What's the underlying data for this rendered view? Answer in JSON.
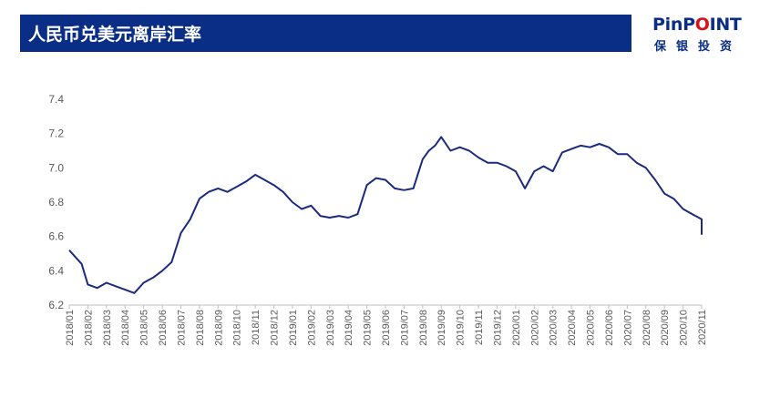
{
  "header": {
    "title": "人民币兑美元离岸汇率"
  },
  "logo": {
    "brand_pin": "PinP",
    "brand_o": "O",
    "brand_int": "INT",
    "subtitle": "保银投资"
  },
  "colors": {
    "title_bg": "#0a2e86",
    "line": "#1b2a7e",
    "logo_accent": "#d8121a"
  },
  "chart_data": {
    "type": "line",
    "title": "人民币兑美元离岸汇率",
    "xlabel": "",
    "ylabel": "",
    "ylim": [
      6.2,
      7.4
    ],
    "yticks": [
      "6.2",
      "6.4",
      "6.6",
      "6.8",
      "7.0",
      "7.2",
      "7.4"
    ],
    "grid": false,
    "legend": "none",
    "categories": [
      "2018/01",
      "2018/02",
      "2018/03",
      "2018/04",
      "2018/05",
      "2018/06",
      "2018/07",
      "2018/08",
      "2018/09",
      "2018/10",
      "2018/11",
      "2018/12",
      "2019/01",
      "2019/02",
      "2019/03",
      "2019/04",
      "2019/05",
      "2019/06",
      "2019/07",
      "2019/08",
      "2019/09",
      "2019/10",
      "2019/11",
      "2019/12",
      "2020/01",
      "2020/02",
      "2020/03",
      "2020/04",
      "2020/05",
      "2020/06",
      "2020/07",
      "2020/08",
      "2020/09",
      "2020/10",
      "2020/11"
    ],
    "series": [
      {
        "x": [
          "2018/01",
          "2018/01",
          "2018/01",
          "2018/02",
          "2018/02",
          "2018/03",
          "2018/03",
          "2018/04",
          "2018/04",
          "2018/05",
          "2018/05",
          "2018/06",
          "2018/06",
          "2018/07",
          "2018/07",
          "2018/08",
          "2018/08",
          "2018/09",
          "2018/09",
          "2018/10",
          "2018/10",
          "2018/11",
          "2018/11",
          "2018/12",
          "2018/12",
          "2019/01",
          "2019/01",
          "2019/02",
          "2019/02",
          "2019/03",
          "2019/03",
          "2019/04",
          "2019/04",
          "2019/05",
          "2019/05",
          "2019/06",
          "2019/06",
          "2019/07",
          "2019/07",
          "2019/08",
          "2019/08",
          "2019/08",
          "2019/09",
          "2019/09",
          "2019/10",
          "2019/10",
          "2019/11",
          "2019/11",
          "2019/12",
          "2019/12",
          "2020/01",
          "2020/01",
          "2020/02",
          "2020/02",
          "2020/03",
          "2020/03",
          "2020/04",
          "2020/04",
          "2020/05",
          "2020/05",
          "2020/06",
          "2020/06",
          "2020/07",
          "2020/07",
          "2020/08",
          "2020/08",
          "2020/09",
          "2020/09",
          "2020/10",
          "2020/10",
          "2020/11",
          "2020/11"
        ],
        "values": [
          6.52,
          6.48,
          6.44,
          6.32,
          6.3,
          6.33,
          6.31,
          6.29,
          6.27,
          6.33,
          6.36,
          6.4,
          6.45,
          6.62,
          6.7,
          6.82,
          6.86,
          6.88,
          6.86,
          6.89,
          6.92,
          6.96,
          6.93,
          6.9,
          6.86,
          6.8,
          6.76,
          6.78,
          6.72,
          6.71,
          6.72,
          6.71,
          6.73,
          6.9,
          6.94,
          6.93,
          6.88,
          6.87,
          6.88,
          7.05,
          7.1,
          7.13,
          7.18,
          7.1,
          7.12,
          7.1,
          7.06,
          7.03,
          7.03,
          7.01,
          6.98,
          6.88,
          6.98,
          7.01,
          6.98,
          7.09,
          7.11,
          7.13,
          7.12,
          7.14,
          7.12,
          7.08,
          7.08,
          7.03,
          7.0,
          6.93,
          6.85,
          6.82,
          6.76,
          6.73,
          6.7,
          6.61
        ]
      }
    ]
  }
}
